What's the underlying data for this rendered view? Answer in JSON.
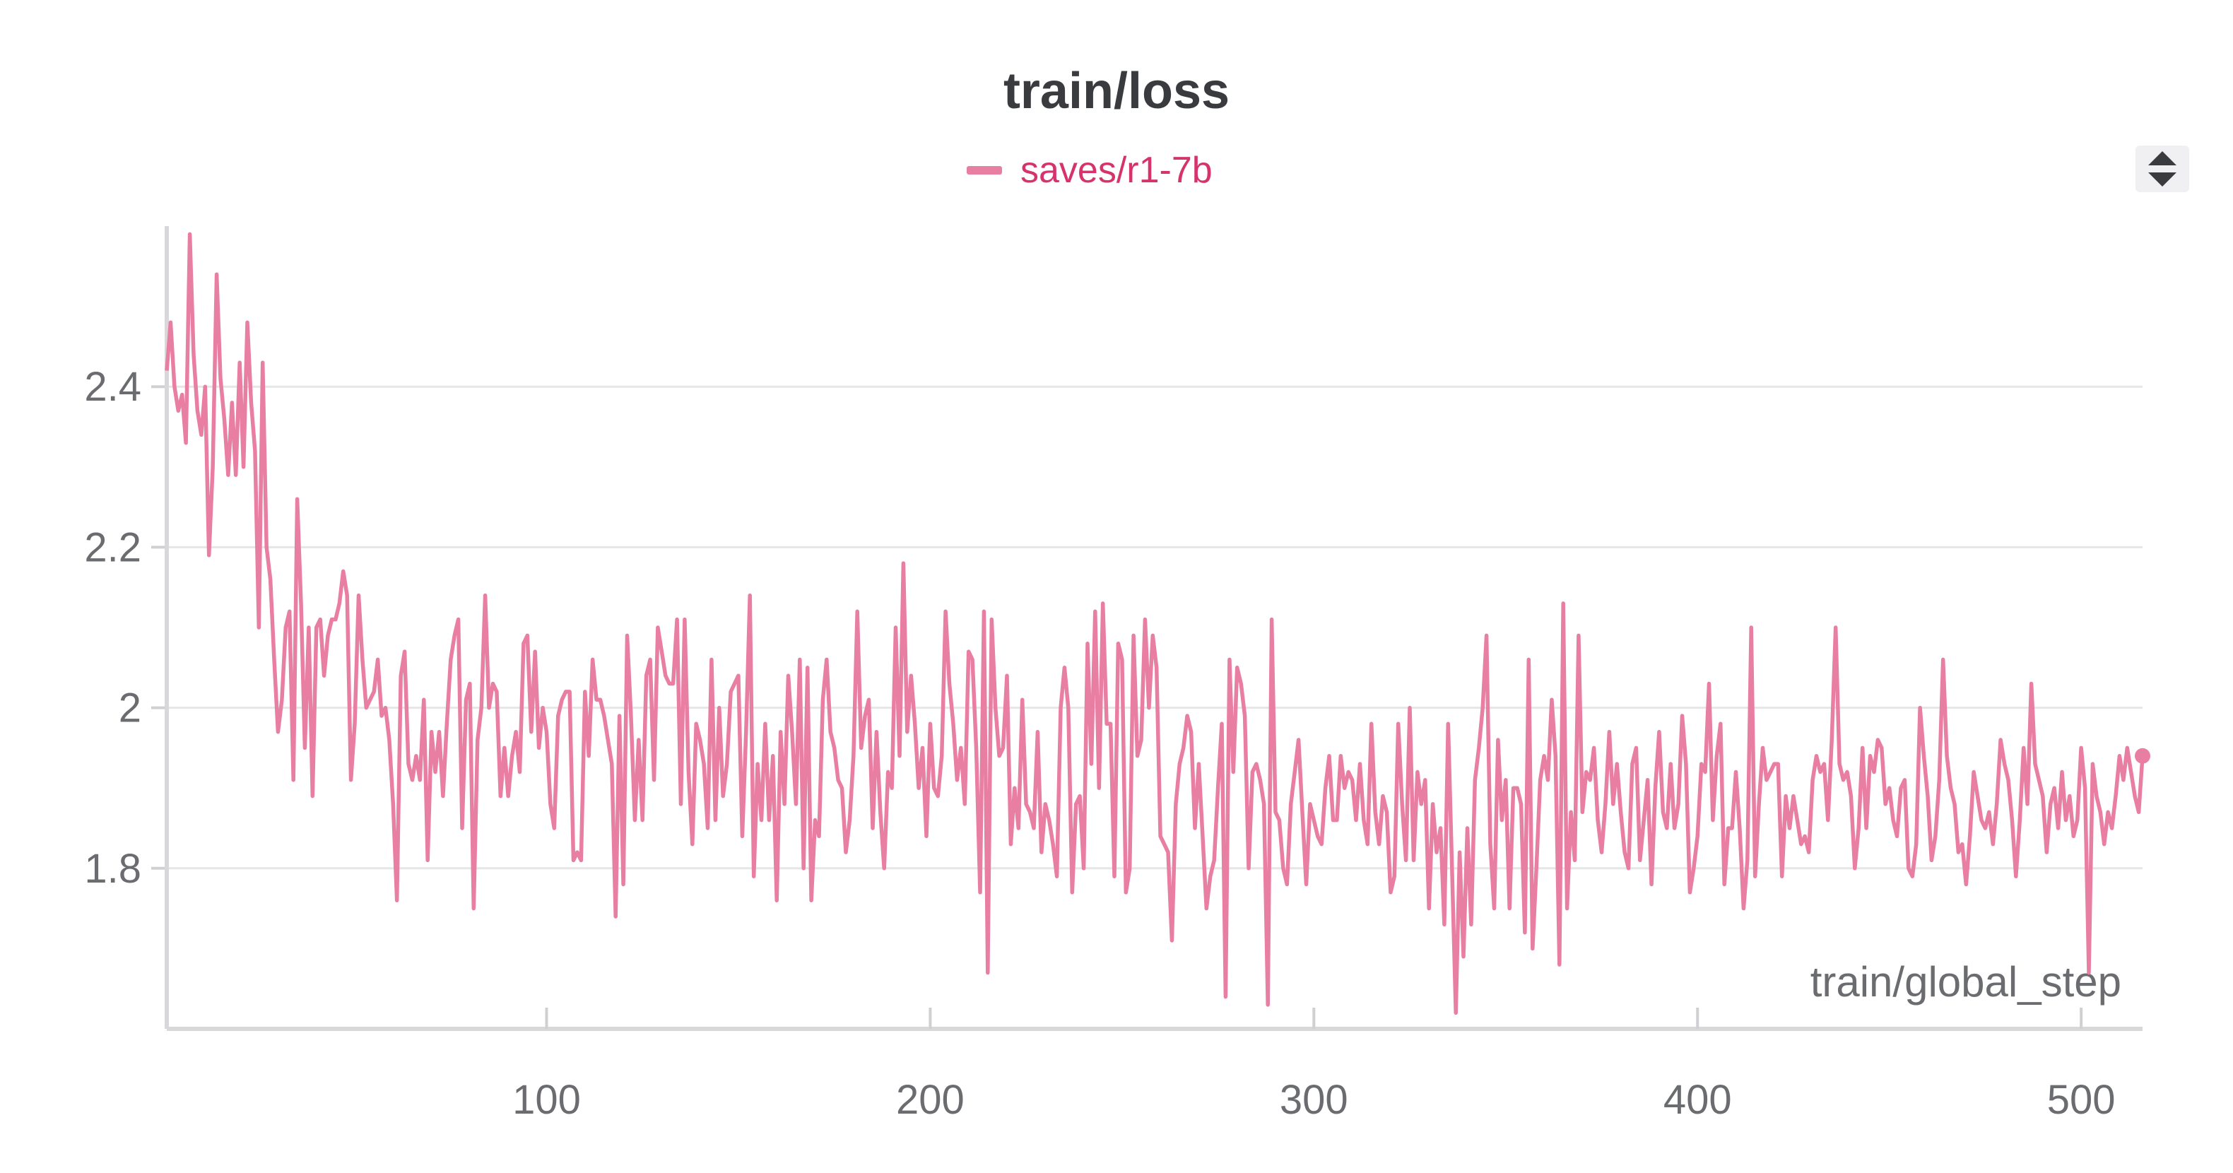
{
  "chart_data": {
    "type": "line",
    "title": "train/loss",
    "xlabel": "train/global_step",
    "ylabel": "",
    "xlim": [
      1,
      516
    ],
    "ylim": [
      1.6,
      2.6
    ],
    "xticks": [
      100,
      200,
      300,
      400,
      500
    ],
    "yticks": [
      1.8,
      2,
      2.2,
      2.4
    ],
    "ytick_labels": [
      "1.8",
      "2",
      "2.2",
      "2.4"
    ],
    "grid": true,
    "legend_position": "top-center",
    "series": [
      {
        "name": "saves/r1-7b",
        "color": "#e97ea3",
        "label_color": "#d6336c",
        "x_start": 1,
        "x_step": 1,
        "values": [
          2.42,
          2.48,
          2.4,
          2.37,
          2.39,
          2.33,
          2.59,
          2.44,
          2.37,
          2.34,
          2.4,
          2.19,
          2.3,
          2.54,
          2.41,
          2.36,
          2.29,
          2.38,
          2.29,
          2.43,
          2.3,
          2.48,
          2.38,
          2.32,
          2.1,
          2.43,
          2.2,
          2.16,
          2.06,
          1.97,
          2.01,
          2.1,
          2.12,
          1.91,
          2.26,
          2.13,
          1.95,
          2.1,
          1.89,
          2.1,
          2.11,
          2.04,
          2.09,
          2.11,
          2.11,
          2.13,
          2.17,
          2.14,
          1.91,
          1.98,
          2.14,
          2.06,
          2.0,
          2.01,
          2.02,
          2.06,
          1.99,
          2.0,
          1.96,
          1.88,
          1.76,
          2.04,
          2.07,
          1.93,
          1.91,
          1.94,
          1.91,
          2.01,
          1.81,
          1.97,
          1.92,
          1.97,
          1.89,
          1.98,
          2.06,
          2.09,
          2.11,
          1.85,
          2.01,
          2.03,
          1.75,
          1.96,
          2.0,
          2.14,
          2.0,
          2.03,
          2.02,
          1.89,
          1.95,
          1.89,
          1.94,
          1.97,
          1.92,
          2.08,
          2.09,
          1.97,
          2.07,
          1.95,
          2.0,
          1.97,
          1.88,
          1.85,
          1.99,
          2.01,
          2.02,
          2.02,
          1.81,
          1.82,
          1.81,
          2.02,
          1.94,
          2.06,
          2.01,
          2.01,
          1.99,
          1.96,
          1.93,
          1.74,
          1.99,
          1.78,
          2.09,
          1.99,
          1.86,
          1.96,
          1.86,
          2.04,
          2.06,
          1.91,
          2.1,
          2.07,
          2.04,
          2.03,
          2.03,
          2.11,
          1.88,
          2.11,
          1.92,
          1.83,
          1.98,
          1.96,
          1.93,
          1.85,
          2.06,
          1.86,
          2.0,
          1.89,
          1.93,
          2.02,
          2.03,
          2.04,
          1.84,
          1.97,
          2.14,
          1.79,
          1.93,
          1.86,
          1.98,
          1.86,
          1.94,
          1.76,
          1.97,
          1.88,
          2.04,
          1.97,
          1.88,
          2.06,
          1.8,
          2.05,
          1.76,
          1.86,
          1.84,
          2.01,
          2.06,
          1.97,
          1.95,
          1.91,
          1.9,
          1.82,
          1.86,
          1.94,
          2.12,
          1.95,
          1.99,
          2.01,
          1.85,
          1.97,
          1.87,
          1.8,
          1.92,
          1.9,
          2.1,
          1.94,
          2.18,
          1.97,
          2.04,
          1.98,
          1.9,
          1.95,
          1.84,
          1.98,
          1.9,
          1.89,
          1.94,
          2.12,
          2.03,
          1.98,
          1.91,
          1.95,
          1.88,
          2.07,
          2.06,
          1.95,
          1.77,
          2.12,
          1.67,
          2.11,
          2.0,
          1.94,
          1.95,
          2.04,
          1.83,
          1.9,
          1.85,
          2.01,
          1.88,
          1.87,
          1.85,
          1.97,
          1.82,
          1.88,
          1.86,
          1.83,
          1.79,
          2.0,
          2.05,
          2.0,
          1.77,
          1.88,
          1.89,
          1.8,
          2.08,
          1.93,
          2.12,
          1.9,
          2.13,
          1.98,
          1.98,
          1.79,
          2.08,
          2.06,
          1.77,
          1.8,
          2.09,
          1.94,
          1.96,
          2.11,
          2.0,
          2.09,
          2.05,
          1.84,
          1.83,
          1.82,
          1.71,
          1.88,
          1.93,
          1.95,
          1.99,
          1.97,
          1.85,
          1.93,
          1.84,
          1.75,
          1.79,
          1.81,
          1.9,
          1.98,
          1.64,
          2.06,
          1.92,
          2.05,
          2.03,
          1.99,
          1.8,
          1.92,
          1.93,
          1.91,
          1.88,
          1.63,
          2.11,
          1.87,
          1.86,
          1.8,
          1.78,
          1.88,
          1.92,
          1.96,
          1.87,
          1.78,
          1.88,
          1.86,
          1.84,
          1.83,
          1.9,
          1.94,
          1.86,
          1.86,
          1.94,
          1.9,
          1.92,
          1.91,
          1.86,
          1.93,
          1.86,
          1.83,
          1.98,
          1.87,
          1.83,
          1.89,
          1.87,
          1.77,
          1.79,
          1.98,
          1.88,
          1.81,
          2.0,
          1.81,
          1.92,
          1.88,
          1.91,
          1.75,
          1.88,
          1.82,
          1.85,
          1.73,
          1.98,
          1.8,
          1.62,
          1.82,
          1.69,
          1.85,
          1.73,
          1.91,
          1.95,
          2.0,
          2.09,
          1.83,
          1.75,
          1.96,
          1.86,
          1.91,
          1.75,
          1.9,
          1.9,
          1.88,
          1.72,
          2.06,
          1.7,
          1.8,
          1.91,
          1.94,
          1.91,
          2.01,
          1.94,
          1.68,
          2.13,
          1.75,
          1.87,
          1.81,
          2.09,
          1.87,
          1.92,
          1.91,
          1.95,
          1.86,
          1.82,
          1.88,
          1.97,
          1.88,
          1.93,
          1.87,
          1.82,
          1.8,
          1.93,
          1.95,
          1.81,
          1.86,
          1.91,
          1.78,
          1.9,
          1.97,
          1.87,
          1.85,
          1.93,
          1.85,
          1.88,
          1.99,
          1.93,
          1.77,
          1.8,
          1.84,
          1.93,
          1.92,
          2.03,
          1.86,
          1.94,
          1.98,
          1.78,
          1.85,
          1.85,
          1.92,
          1.85,
          1.75,
          1.81,
          2.1,
          1.79,
          1.88,
          1.95,
          1.91,
          1.92,
          1.93,
          1.93,
          1.79,
          1.89,
          1.85,
          1.89,
          1.86,
          1.83,
          1.84,
          1.82,
          1.91,
          1.94,
          1.92,
          1.93,
          1.86,
          1.96,
          2.1,
          1.93,
          1.91,
          1.92,
          1.89,
          1.8,
          1.85,
          1.95,
          1.85,
          1.94,
          1.92,
          1.96,
          1.95,
          1.88,
          1.9,
          1.86,
          1.84,
          1.9,
          1.91,
          1.8,
          1.79,
          1.83,
          2.0,
          1.94,
          1.89,
          1.81,
          1.84,
          1.91,
          2.06,
          1.94,
          1.9,
          1.88,
          1.82,
          1.83,
          1.78,
          1.84,
          1.92,
          1.89,
          1.86,
          1.85,
          1.87,
          1.83,
          1.88,
          1.96,
          1.93,
          1.91,
          1.86,
          1.79,
          1.86,
          1.95,
          1.88,
          2.03,
          1.93,
          1.91,
          1.89,
          1.82,
          1.88,
          1.9,
          1.85,
          1.92,
          1.86,
          1.89,
          1.84,
          1.86,
          1.95,
          1.9,
          1.67,
          1.93,
          1.89,
          1.87,
          1.83,
          1.87,
          1.85,
          1.89,
          1.94,
          1.91,
          1.95,
          1.92,
          1.89,
          1.87,
          1.94
        ]
      }
    ]
  }
}
